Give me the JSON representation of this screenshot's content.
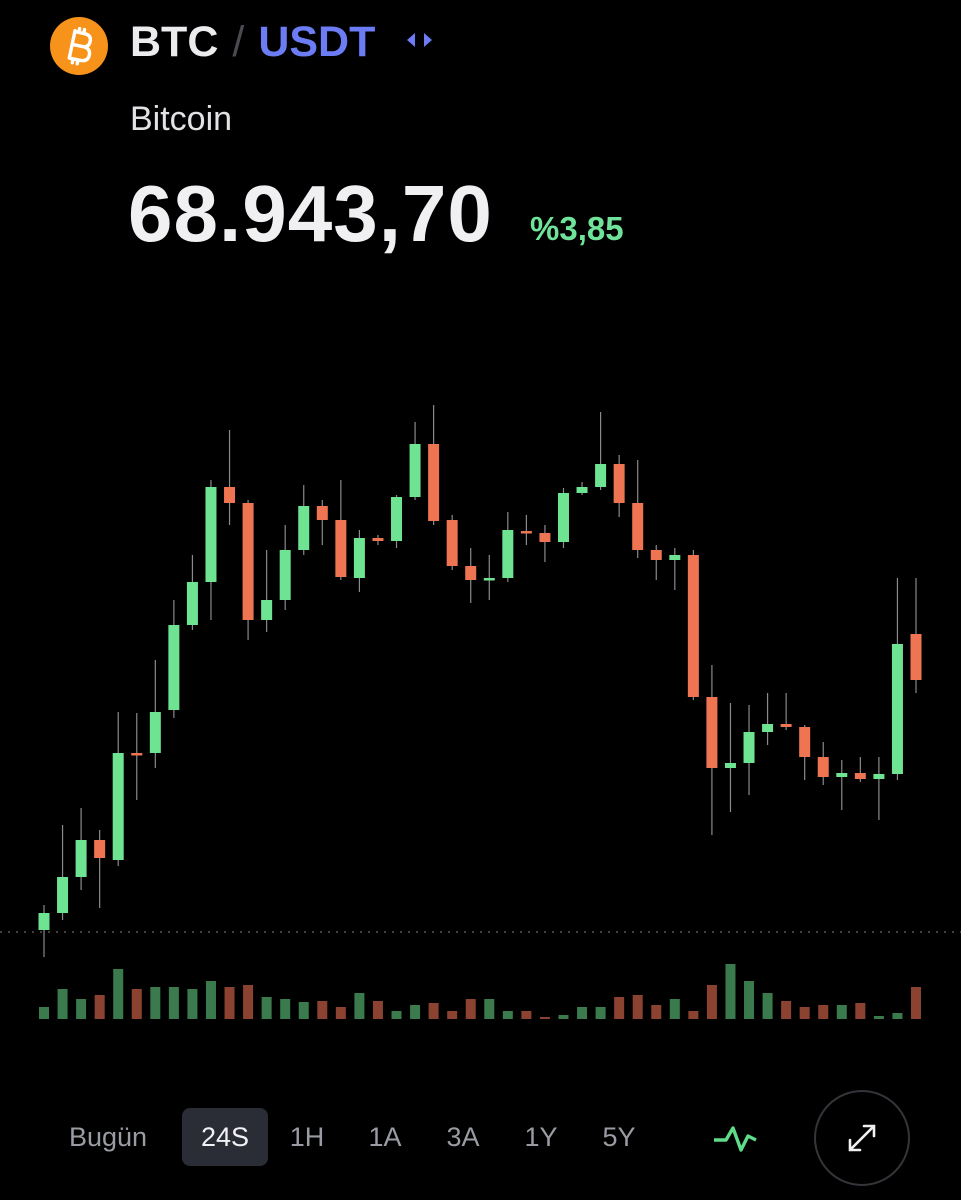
{
  "header": {
    "base": "BTC",
    "separator": "/",
    "quote": "USDT",
    "name": "Bitcoin",
    "price": "68.943,70",
    "change": "%3,85"
  },
  "tabs": {
    "items": [
      "Bugün",
      "24S",
      "1H",
      "1A",
      "3A",
      "1Y",
      "5Y"
    ],
    "selected": 1
  },
  "chart_data": {
    "type": "candlestick",
    "up_color": "#6ee392",
    "down_color": "#ee7452",
    "volume_up_color": "#3a7a4c",
    "volume_down_color": "#8b4230",
    "open": [
      66444,
      66614,
      66974,
      67344,
      67144,
      68214,
      68214,
      68644,
      69494,
      69924,
      70874,
      70714,
      69544,
      69744,
      70244,
      70684,
      70544,
      69964,
      70364,
      70334,
      70774,
      71304,
      70544,
      70084,
      69944,
      69964,
      70434,
      70414,
      70324,
      70814,
      70874,
      71104,
      70714,
      70244,
      70144,
      70194,
      68774,
      68064,
      68114,
      68424,
      68504,
      68474,
      68174,
      67974,
      68014,
      67954,
      68004,
      69404
    ],
    "high": [
      66694,
      67494,
      67664,
      67444,
      68624,
      68614,
      69144,
      69744,
      70194,
      70944,
      71444,
      70744,
      70244,
      70494,
      70894,
      70744,
      70944,
      70444,
      70394,
      70794,
      71524,
      71694,
      70594,
      70264,
      70194,
      70624,
      70594,
      70494,
      70864,
      70924,
      71624,
      71194,
      71144,
      70294,
      70264,
      70244,
      69094,
      68714,
      68694,
      68814,
      68814,
      68494,
      68324,
      68144,
      68174,
      68174,
      69964,
      69964
    ],
    "low": [
      66174,
      66544,
      66844,
      66664,
      67084,
      67744,
      68064,
      68564,
      69444,
      69544,
      70494,
      69344,
      69424,
      69644,
      70194,
      70294,
      69944,
      69824,
      70294,
      70264,
      70744,
      70494,
      70044,
      69714,
      69744,
      69924,
      70294,
      70124,
      70264,
      70794,
      70844,
      70574,
      70164,
      69944,
      69844,
      68744,
      67394,
      67624,
      67794,
      68294,
      68444,
      67944,
      67894,
      67644,
      67924,
      67544,
      67944,
      68814
    ],
    "close": [
      66614,
      66974,
      67344,
      67164,
      68214,
      68204,
      68624,
      69494,
      69924,
      70874,
      70714,
      69544,
      69744,
      70244,
      70684,
      70544,
      69974,
      70364,
      70334,
      70774,
      71304,
      70534,
      70084,
      69944,
      69964,
      70444,
      70414,
      70324,
      70814,
      70874,
      71104,
      70714,
      70244,
      70144,
      70194,
      68774,
      68064,
      68114,
      68424,
      68504,
      68474,
      68174,
      67974,
      68014,
      67954,
      68004,
      69304,
      68944
    ],
    "volume": [
      12,
      30,
      20,
      24,
      50,
      30,
      32,
      32,
      30,
      38,
      32,
      34,
      22,
      20,
      17,
      18,
      12,
      26,
      18,
      8,
      14,
      16,
      8,
      20,
      20,
      8,
      8,
      2,
      4,
      12,
      12,
      22,
      24,
      14,
      20,
      8,
      34,
      55,
      38,
      26,
      18,
      12,
      14,
      14,
      16,
      3,
      6,
      32
    ]
  }
}
